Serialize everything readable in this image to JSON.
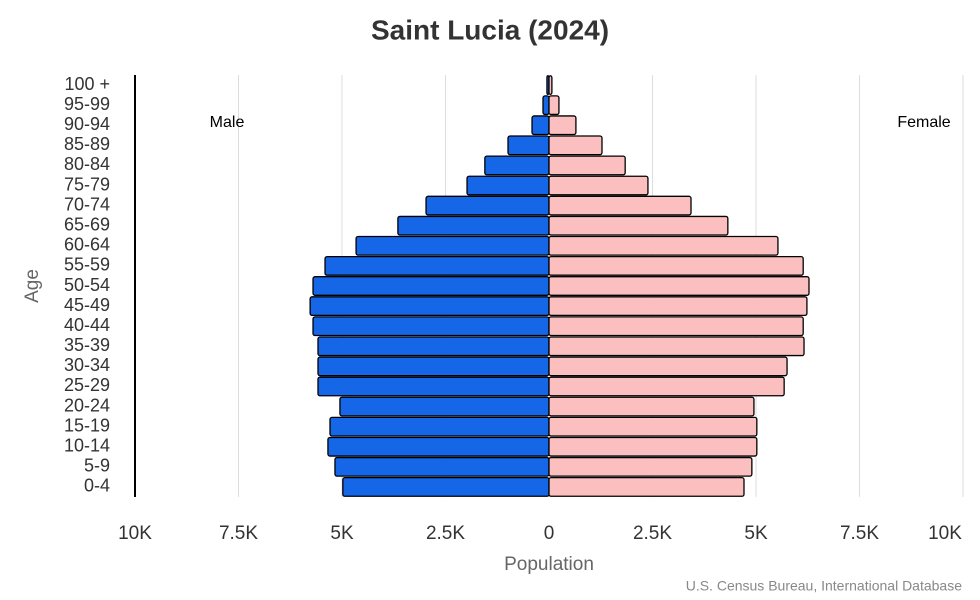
{
  "chart_data": {
    "type": "pyramid",
    "title": "Saint Lucia (2024)",
    "x_label": "Population",
    "y_label": "Age",
    "source": "U.S. Census Bureau, International Database",
    "categories": [
      "0-4",
      "5-9",
      "10-14",
      "15-19",
      "20-24",
      "25-29",
      "30-34",
      "35-39",
      "40-44",
      "45-49",
      "50-54",
      "55-59",
      "60-64",
      "65-69",
      "70-74",
      "75-79",
      "80-84",
      "85-89",
      "90-94",
      "95-99",
      "100 +"
    ],
    "series": [
      {
        "name": "Male",
        "color": "#1666e8",
        "values": [
          4980,
          5170,
          5340,
          5290,
          5050,
          5580,
          5580,
          5580,
          5700,
          5770,
          5700,
          5410,
          4660,
          3650,
          2970,
          1980,
          1550,
          990,
          410,
          145,
          50
        ]
      },
      {
        "name": "Female",
        "color": "#fbbfbf",
        "values": [
          4710,
          4900,
          5020,
          5020,
          4950,
          5680,
          5750,
          6160,
          6140,
          6230,
          6280,
          6140,
          5530,
          4320,
          3430,
          2390,
          1840,
          1280,
          650,
          240,
          70
        ]
      }
    ],
    "xlim": [
      -10000,
      10000
    ],
    "xticks": [
      {
        "value": -10000,
        "label": "10K"
      },
      {
        "value": -7500,
        "label": "7.5K"
      },
      {
        "value": -5000,
        "label": "5K"
      },
      {
        "value": -2500,
        "label": "2.5K"
      },
      0,
      {
        "value": 2500,
        "label": "2.5K"
      },
      {
        "value": 5000,
        "label": "5K"
      },
      {
        "value": 7500,
        "label": "7.5K"
      },
      {
        "value": 10000,
        "label": "10K"
      }
    ],
    "grid": true
  }
}
